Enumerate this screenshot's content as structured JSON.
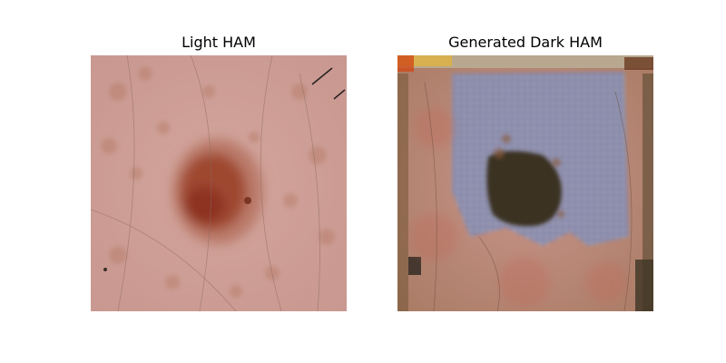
{
  "figure": {
    "panels": [
      {
        "title": "Light HAM"
      },
      {
        "title": "Generated Dark HAM"
      }
    ]
  }
}
